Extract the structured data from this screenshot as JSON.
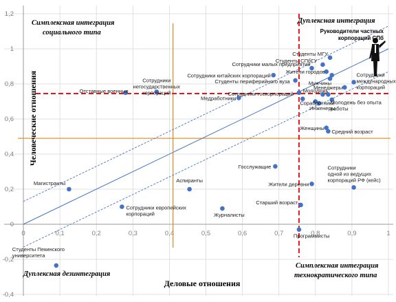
{
  "chart_data": {
    "type": "scatter",
    "xlabel": "Деловые отношения",
    "ylabel": "Человеческие отношения",
    "xlim": [
      0,
      1
    ],
    "ylim": [
      -0.4,
      1.2
    ],
    "x_ticks": [
      "0",
      "0,1",
      "0,2",
      "0,3",
      "0,4",
      "0,5",
      "0,6",
      "0,7",
      "0,8",
      "0,9",
      "1"
    ],
    "y_ticks": [
      "-0,4",
      "-0,2",
      "0",
      "0,2",
      "0,4",
      "0,6",
      "0,8",
      "1",
      "1,2"
    ],
    "grid": true,
    "colors": {
      "point": "#4472c4",
      "thresholds": "#e8141c",
      "mean_lines": "#d9891a",
      "trend": "#4472c4"
    },
    "points": [
      {
        "label": "Студенты МГУ",
        "x": 0.84,
        "y": 0.95
      },
      {
        "label": "Студенты СПбГУ",
        "x": 0.82,
        "y": 0.91
      },
      {
        "label": "Сотрудники малых предприятий",
        "x": 0.79,
        "y": 0.89
      },
      {
        "label": "Жители городов",
        "x": 0.83,
        "y": 0.87
      },
      {
        "label": "",
        "x": 0.845,
        "y": 0.85
      },
      {
        "label": "Мужчины",
        "x": 0.84,
        "y": 0.83
      },
      {
        "label": "Сотрудники китайских корпораций",
        "x": 0.685,
        "y": 0.85
      },
      {
        "label": "Студенты периферийного вуза",
        "x": 0.745,
        "y": 0.82
      },
      {
        "label": "Сотрудники международных корпораций",
        "x": 0.905,
        "y": 0.81
      },
      {
        "label": "Менеджеры",
        "x": 0.88,
        "y": 0.78
      },
      {
        "label": "Сотрудники госкорпораций",
        "x": 0.755,
        "y": 0.75
      },
      {
        "label": "Молодежь",
        "x": 0.835,
        "y": 0.74
      },
      {
        "label": "",
        "x": 0.82,
        "y": 0.74
      },
      {
        "label": "",
        "x": 0.845,
        "y": 0.71
      },
      {
        "label": "Молодежь без опыта работы",
        "x": 0.8,
        "y": 0.7
      },
      {
        "label": "Сотрудники негосударственных корпораций",
        "x": 0.365,
        "y": 0.755
      },
      {
        "label": "Отставные военные",
        "x": 0.28,
        "y": 0.75
      },
      {
        "label": "Медработники",
        "x": 0.59,
        "y": 0.72
      },
      {
        "label": "Сорабротники",
        "x": 0.765,
        "y": 0.715
      },
      {
        "label": "Инженеры",
        "x": 0.81,
        "y": 0.69
      },
      {
        "label": "Женщины",
        "x": 0.83,
        "y": 0.55
      },
      {
        "label": "Средний возраст",
        "x": 0.835,
        "y": 0.53
      },
      {
        "label": "Госслужащие",
        "x": 0.69,
        "y": 0.33
      },
      {
        "label": "Жители деревни",
        "x": 0.79,
        "y": 0.23
      },
      {
        "label": "Сотрудники одной из ведущих корпораций РФ (кейс)",
        "x": 0.905,
        "y": 0.21
      },
      {
        "label": "Магистранты",
        "x": 0.125,
        "y": 0.2
      },
      {
        "label": "Аспиранты",
        "x": 0.455,
        "y": 0.2
      },
      {
        "label": "Старший возраст",
        "x": 0.76,
        "y": 0.11
      },
      {
        "label": "Сотрудники европейских корпораций",
        "x": 0.27,
        "y": 0.1
      },
      {
        "label": "Журналисты",
        "x": 0.545,
        "y": 0.09
      },
      {
        "label": "Программисты",
        "x": 0.755,
        "y": -0.03
      },
      {
        "label": "Студенты Пекинского университета",
        "x": 0.09,
        "y": -0.235
      }
    ],
    "trend_line": {
      "x": [
        0,
        1
      ],
      "y": [
        0,
        1.0
      ]
    },
    "confidence_upper": {
      "x": [
        0,
        1
      ],
      "y": [
        0.13,
        1.13
      ]
    },
    "confidence_lower": {
      "x": [
        0,
        1
      ],
      "y": [
        -0.13,
        0.87
      ]
    },
    "threshold_x": 0.755,
    "threshold_y": 0.745,
    "mean_x": 0.41,
    "mean_y": 0.49,
    "quadrants": {
      "top_left_1": "Симплексная интеграция",
      "top_left_2": "социального типа",
      "top_right": "Дуплексная интеграция",
      "bottom_left": "Дуплексная дезинтеграция",
      "bottom_right_1": "Симплексная интеграция",
      "bottom_right_2": "технократического типа"
    },
    "annotation_1": "Руководители частных",
    "annotation_2": "корпораций СПб"
  }
}
